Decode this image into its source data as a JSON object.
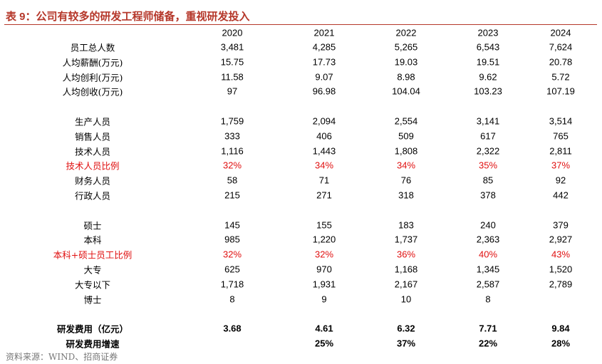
{
  "header": {
    "title": "表 9：公司有较多的研发工程师储备，重视研发投入"
  },
  "table": {
    "columns": [
      "2020",
      "2021",
      "2022",
      "2023",
      "2024"
    ],
    "sections": [
      {
        "rows": [
          {
            "label": "员工总人数",
            "values": [
              "3,481",
              "4,285",
              "5,265",
              "6,543",
              "7,624"
            ]
          },
          {
            "label": "人均薪酬(万元)",
            "values": [
              "15.75",
              "17.73",
              "19.03",
              "19.51",
              "20.78"
            ]
          },
          {
            "label": "人均创利(万元)",
            "values": [
              "11.58",
              "9.07",
              "8.98",
              "9.62",
              "5.72"
            ]
          },
          {
            "label": "人均创收(万元)",
            "values": [
              "97",
              "96.98",
              "104.04",
              "103.23",
              "107.19"
            ]
          }
        ]
      },
      {
        "rows": [
          {
            "label": "生产人员",
            "values": [
              "1,759",
              "2,094",
              "2,554",
              "3,141",
              "3,514"
            ]
          },
          {
            "label": "销售人员",
            "values": [
              "333",
              "406",
              "509",
              "617",
              "765"
            ]
          },
          {
            "label": "技术人员",
            "values": [
              "1,116",
              "1,443",
              "1,808",
              "2,322",
              "2,811"
            ]
          },
          {
            "label": "技术人员比例",
            "values": [
              "32%",
              "34%",
              "34%",
              "35%",
              "37%"
            ],
            "color": "#e01010"
          },
          {
            "label": "财务人员",
            "values": [
              "58",
              "71",
              "76",
              "85",
              "92"
            ]
          },
          {
            "label": "行政人员",
            "values": [
              "215",
              "271",
              "318",
              "378",
              "442"
            ]
          }
        ]
      },
      {
        "rows": [
          {
            "label": "硕士",
            "values": [
              "145",
              "155",
              "183",
              "240",
              "379"
            ]
          },
          {
            "label": "本科",
            "values": [
              "985",
              "1,220",
              "1,737",
              "2,363",
              "2,927"
            ]
          },
          {
            "label": "本科+硕士员工比例",
            "values": [
              "32%",
              "32%",
              "36%",
              "40%",
              "43%"
            ],
            "color": "#e01010"
          },
          {
            "label": "大专",
            "values": [
              "625",
              "970",
              "1,168",
              "1,345",
              "1,520"
            ]
          },
          {
            "label": "大专以下",
            "values": [
              "1,718",
              "1,931",
              "2,167",
              "2,587",
              "2,789"
            ]
          },
          {
            "label": "博士",
            "values": [
              "8",
              "9",
              "10",
              "8",
              null
            ]
          }
        ]
      },
      {
        "rows": [
          {
            "label": "研发费用（亿元）",
            "values": [
              "3.68",
              "4.61",
              "6.32",
              "7.71",
              "9.84"
            ],
            "bold": true
          },
          {
            "label": "研发费用增速",
            "values": [
              null,
              "25%",
              "37%",
              "22%",
              "28%"
            ],
            "bold": true
          }
        ]
      }
    ]
  },
  "footer": {
    "source": "资料来源：WIND、招商证券"
  }
}
